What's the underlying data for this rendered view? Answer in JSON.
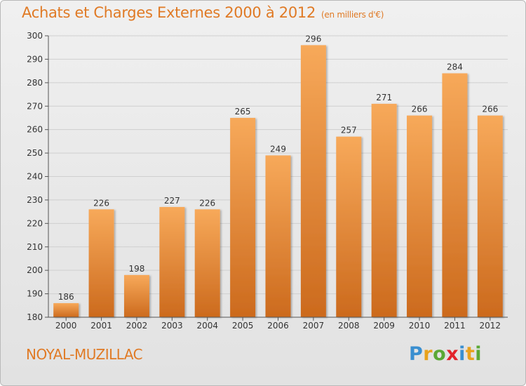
{
  "header": {
    "title": "Achats et Charges Externes 2000 à 2012",
    "unit": "(en milliers d'€)"
  },
  "footer": {
    "commune": "NOYAL-MUZILLAC"
  },
  "logo": {
    "text": "Proxiti",
    "letters": [
      {
        "char": "P",
        "color": "#3a8fd0"
      },
      {
        "char": "r",
        "color": "#e8a21c"
      },
      {
        "char": "o",
        "color": "#5aa835"
      },
      {
        "char": "x",
        "color": "#e2242b"
      },
      {
        "char": "i",
        "color": "#3a8fd0"
      },
      {
        "char": "t",
        "color": "#e8a21c"
      },
      {
        "char": "i",
        "color": "#5aa835"
      }
    ]
  },
  "colors": {
    "title": "#e07a25",
    "bar_top": "#f7a95a",
    "bar_bottom": "#cc6a1d",
    "grid": "#cfcfcf",
    "axis": "#555555"
  },
  "chart_data": {
    "type": "bar",
    "title": "Achats et Charges Externes 2000 à 2012",
    "subtitle": "(en milliers d'€)",
    "categories": [
      "2000",
      "2001",
      "2002",
      "2003",
      "2004",
      "2005",
      "2006",
      "2007",
      "2008",
      "2009",
      "2010",
      "2011",
      "2012"
    ],
    "values": [
      186,
      226,
      198,
      227,
      226,
      265,
      249,
      296,
      257,
      271,
      266,
      284,
      266
    ],
    "ylim": [
      180,
      300
    ],
    "yticks": [
      180,
      190,
      200,
      210,
      220,
      230,
      240,
      250,
      260,
      270,
      280,
      290,
      300
    ],
    "grid": true,
    "data_labels": true
  }
}
